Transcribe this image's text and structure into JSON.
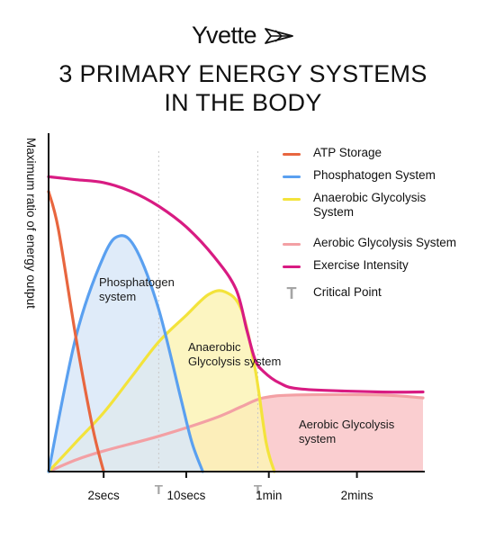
{
  "brand": {
    "name": "Yvette"
  },
  "title": {
    "line1": "3 PRIMARY ENERGY SYSTEMS",
    "line2": "IN THE BODY"
  },
  "chart_data": {
    "type": "line",
    "ylabel": "Maximum ratio of energy output",
    "xlabel": "",
    "x_ticks": [
      "2secs",
      "10secs",
      "1min",
      "2mins"
    ],
    "critical_point_marker": "T",
    "legend": [
      {
        "label": "ATP Storage",
        "color": "#e8663f",
        "kind": "line"
      },
      {
        "label": "Phosphatogen System",
        "color": "#5aa0f0",
        "kind": "line"
      },
      {
        "label": "Anaerobic Glycolysis System",
        "color": "#f3e33b",
        "kind": "line"
      },
      {
        "label": "Aerobic Glycolysis System",
        "color": "#f3a0a4",
        "kind": "line"
      },
      {
        "label": "Exercise Intensity",
        "color": "#d81b82",
        "kind": "line"
      },
      {
        "label": "Critical Point",
        "color": "#a5a5a5",
        "kind": "marker",
        "icon": "critical-point-icon"
      }
    ],
    "region_labels": {
      "phosphatogen": [
        "Phosphatogen",
        "system"
      ],
      "anaerobic": [
        "Anaerobic",
        "Glycolysis system"
      ],
      "aerobic": [
        "Aerobic Glycolysis",
        "system"
      ]
    },
    "series": [
      {
        "name": "ATP Storage",
        "x": [
          0,
          0.18,
          0.5,
          0.8,
          1.0
        ],
        "y": [
          0.95,
          0.82,
          0.45,
          0.15,
          0.0
        ]
      },
      {
        "name": "Phosphatogen System",
        "x": [
          0,
          0.5,
          1.0,
          1.3,
          1.6,
          2.0,
          2.4,
          2.6,
          2.8
        ],
        "y": [
          0.0,
          0.46,
          0.73,
          0.8,
          0.75,
          0.55,
          0.25,
          0.1,
          0.0
        ]
      },
      {
        "name": "Anaerobic Glycolysis System",
        "x": [
          0,
          0.5,
          1.0,
          1.5,
          2.0,
          2.5,
          2.9,
          3.2,
          3.5,
          3.75,
          3.95,
          4.1
        ],
        "y": [
          0.0,
          0.1,
          0.2,
          0.32,
          0.44,
          0.53,
          0.6,
          0.61,
          0.55,
          0.35,
          0.1,
          0.0
        ]
      },
      {
        "name": "Aerobic Glycolysis System",
        "x": [
          0,
          0.5,
          1.0,
          2.0,
          3.0,
          3.5,
          3.9,
          4.5,
          6.0,
          6.8
        ],
        "y": [
          0.0,
          0.04,
          0.07,
          0.12,
          0.18,
          0.22,
          0.25,
          0.26,
          0.26,
          0.25
        ]
      },
      {
        "name": "Exercise Intensity",
        "x": [
          0,
          0.5,
          1.0,
          1.5,
          2.0,
          2.5,
          3.0,
          3.4,
          3.6,
          3.75,
          3.9,
          4.2,
          4.6,
          6.0,
          6.8
        ],
        "y": [
          1.0,
          0.99,
          0.98,
          0.95,
          0.9,
          0.83,
          0.73,
          0.62,
          0.48,
          0.38,
          0.34,
          0.3,
          0.28,
          0.27,
          0.27
        ]
      }
    ],
    "xlim": [
      0,
      6.8
    ],
    "ylim": [
      0,
      1.05
    ],
    "tick_positions": [
      1.0,
      2.5,
      4.0,
      5.6
    ],
    "critical_points": [
      2.0,
      3.8
    ],
    "grid": false
  }
}
